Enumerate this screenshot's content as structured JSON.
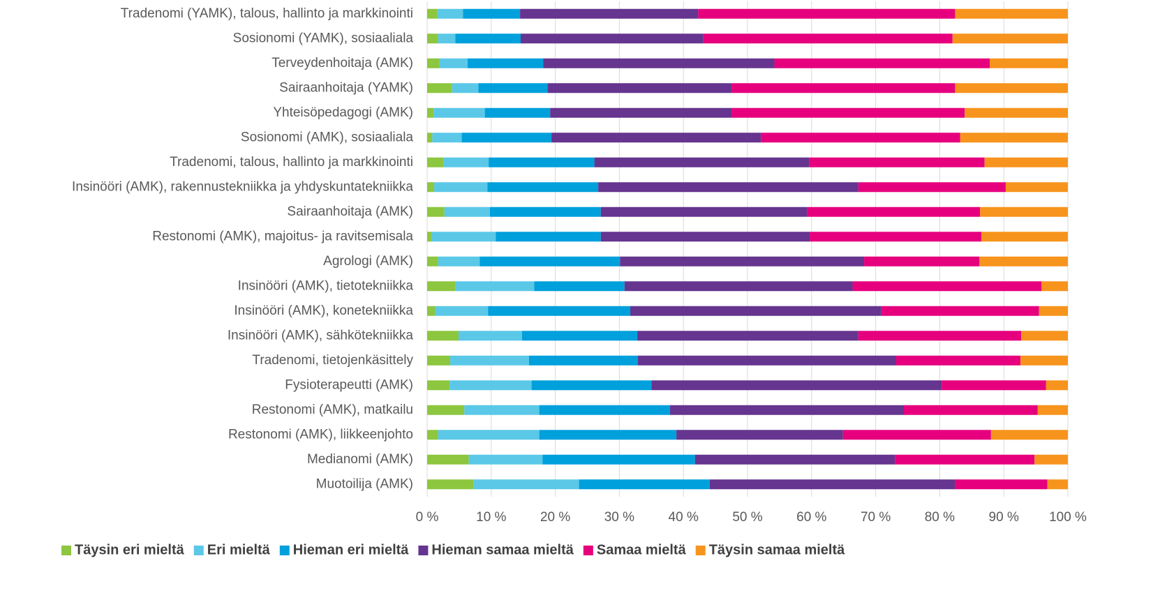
{
  "chart_data": {
    "type": "stacked_barh",
    "categories": [
      "Tradenomi (YAMK), talous, hallinto ja markkinointi",
      "Sosionomi (YAMK), sosiaaliala",
      "Terveydenhoitaja (AMK)",
      "Sairaanhoitaja (YAMK)",
      "Yhteisöpedagogi (AMK)",
      "Sosionomi (AMK), sosiaaliala",
      "Tradenomi, talous, hallinto ja markkinointi",
      "Insinööri (AMK), rakennustekniikka ja yhdyskuntatekniikka",
      "Sairaanhoitaja (AMK)",
      "Restonomi (AMK), majoitus- ja ravitsemisala",
      "Agrologi (AMK)",
      "Insinööri (AMK), tietotekniikka",
      "Insinööri (AMK), konetekniikka",
      "Insinööri (AMK), sähkötekniikka",
      "Tradenomi, tietojenkäsittely",
      "Fysioterapeutti (AMK)",
      "Restonomi (AMK), matkailu",
      "Restonomi (AMK), liikkeenjohto",
      "Medianomi (AMK)",
      "Muotoilija (AMK)"
    ],
    "series": [
      {
        "name": "Täysin eri mieltä",
        "color": "#8dc63f",
        "values": [
          1.6,
          1.7,
          1.9,
          3.9,
          1.0,
          0.8,
          2.6,
          1.1,
          2.7,
          0.7,
          1.7,
          4.4,
          1.2,
          4.9,
          3.6,
          3.5,
          5.8,
          1.7,
          6.5,
          7.2
        ]
      },
      {
        "name": "Eri mieltä",
        "color": "#5bc8e8",
        "values": [
          4.0,
          2.7,
          4.4,
          4.1,
          8.0,
          4.6,
          7.0,
          8.3,
          7.1,
          10.0,
          6.5,
          12.3,
          8.3,
          9.9,
          12.3,
          12.8,
          11.7,
          15.8,
          11.5,
          16.5
        ]
      },
      {
        "name": "Hieman eri mieltä",
        "color": "#00a0dc",
        "values": [
          8.9,
          10.2,
          11.8,
          10.8,
          10.2,
          14.0,
          16.5,
          17.3,
          17.3,
          16.4,
          21.9,
          14.1,
          22.2,
          18.0,
          17.0,
          18.7,
          20.4,
          21.4,
          23.8,
          20.4
        ]
      },
      {
        "name": "Hieman samaa mieltä",
        "color": "#65358f",
        "values": [
          27.8,
          28.5,
          36.1,
          28.7,
          28.3,
          32.7,
          33.5,
          40.6,
          32.2,
          32.6,
          38.1,
          35.6,
          39.2,
          34.5,
          40.3,
          45.3,
          36.5,
          26.0,
          31.2,
          38.3
        ]
      },
      {
        "name": "Samaa mieltä",
        "color": "#e6007e",
        "values": [
          40.1,
          38.9,
          33.6,
          34.9,
          36.4,
          31.1,
          27.4,
          23.0,
          27.0,
          26.8,
          18.0,
          29.5,
          24.6,
          25.4,
          19.4,
          16.3,
          20.9,
          23.1,
          21.8,
          14.4
        ]
      },
      {
        "name": "Täysin samaa mieltä",
        "color": "#f7941d",
        "values": [
          17.6,
          18.0,
          12.2,
          17.6,
          16.1,
          16.8,
          13.0,
          9.7,
          13.7,
          13.5,
          13.8,
          4.1,
          4.5,
          7.3,
          7.4,
          3.4,
          4.7,
          12.0,
          5.2,
          3.2
        ]
      }
    ],
    "xlim": [
      0,
      100
    ],
    "xticks": [
      {
        "value": 0,
        "label": "0 %"
      },
      {
        "value": 10,
        "label": "10 %"
      },
      {
        "value": 20,
        "label": "20 %"
      },
      {
        "value": 30,
        "label": "30 %"
      },
      {
        "value": 40,
        "label": "40 %"
      },
      {
        "value": 50,
        "label": "50 %"
      },
      {
        "value": 60,
        "label": "60 %"
      },
      {
        "value": 70,
        "label": "70 %"
      },
      {
        "value": 80,
        "label": "80 %"
      },
      {
        "value": 90,
        "label": "90 %"
      },
      {
        "value": 100,
        "label": "100 %"
      }
    ],
    "grid": true,
    "legend": "bottom"
  }
}
